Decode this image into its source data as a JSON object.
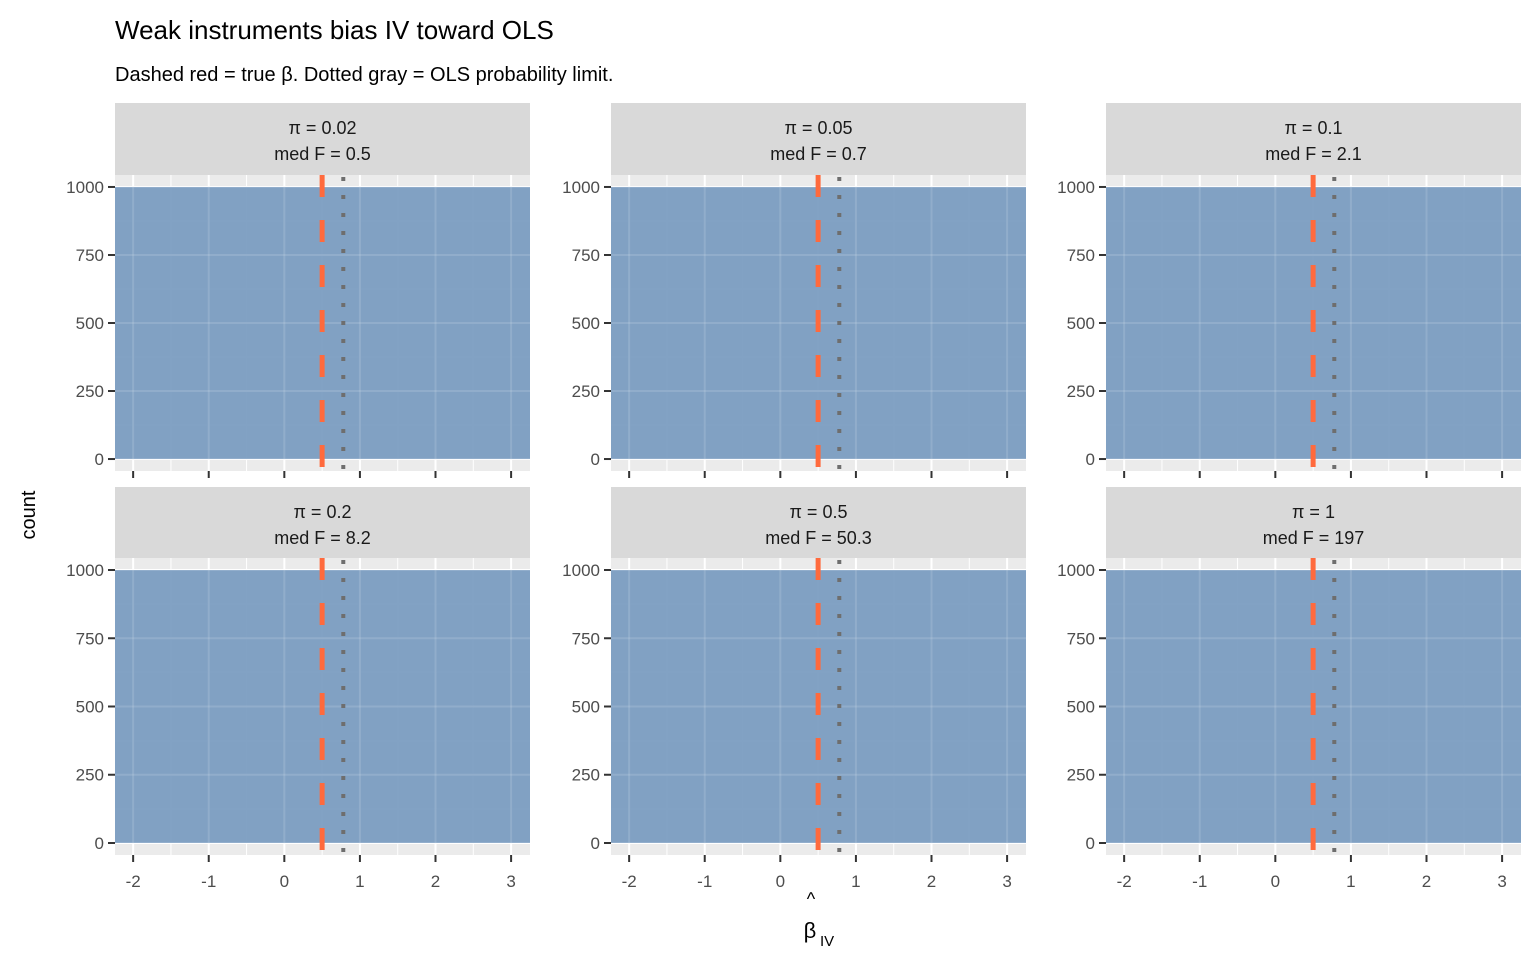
{
  "chart_data": {
    "type": "bar",
    "title": "Weak instruments bias IV toward OLS",
    "subtitle": "Dashed red = true β. Dotted gray = OLS probability limit.",
    "xlabel_base": "β",
    "xlabel_hat": "^",
    "xlabel_sub": "IV",
    "ylabel": "count",
    "xlim": [
      -2.24,
      3.25
    ],
    "ylim": [
      -44,
      1044
    ],
    "xticks": [
      -2,
      -1,
      0,
      1,
      2,
      3
    ],
    "xtick_labels": [
      "-2",
      "-1",
      "0",
      "1",
      "2",
      "3"
    ],
    "yticks": [
      0,
      250,
      500,
      750,
      1000
    ],
    "ytick_labels": [
      "0",
      "250",
      "500",
      "750",
      "1000"
    ],
    "true_beta": 0.5,
    "ols_plim": 0.78,
    "fill_color": "#7B9DC1",
    "true_line_color": "#FF6A3D",
    "ols_line_color": "#6E6E6E",
    "panels": [
      {
        "strip1": "π = 0.02",
        "strip2": "med F = 0.5",
        "bins": [
          {
            "x0": -2.24,
            "x1": 3.25,
            "count": 1000
          }
        ]
      },
      {
        "strip1": "π = 0.05",
        "strip2": "med F = 0.7",
        "bins": [
          {
            "x0": -2.24,
            "x1": 3.25,
            "count": 1000
          }
        ]
      },
      {
        "strip1": "π = 0.1",
        "strip2": "med F = 2.1",
        "bins": [
          {
            "x0": -2.24,
            "x1": 3.25,
            "count": 1000
          }
        ]
      },
      {
        "strip1": "π = 0.2",
        "strip2": "med F = 8.2",
        "bins": [
          {
            "x0": -2.24,
            "x1": 3.25,
            "count": 1000
          }
        ]
      },
      {
        "strip1": "π = 0.5",
        "strip2": "med F = 50.3",
        "bins": [
          {
            "x0": -2.24,
            "x1": 3.25,
            "count": 1000
          }
        ]
      },
      {
        "strip1": "π = 1",
        "strip2": "med F = 197",
        "bins": [
          {
            "x0": -2.24,
            "x1": 3.25,
            "count": 1000
          }
        ]
      }
    ]
  }
}
